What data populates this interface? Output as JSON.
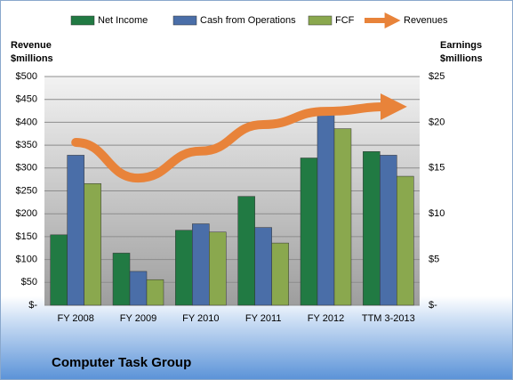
{
  "chart_data": {
    "type": "bar",
    "title": "Computer Task Group",
    "ylabel": [
      "Revenue",
      "$millions"
    ],
    "y2label": [
      "Earnings",
      "$millions"
    ],
    "categories": [
      "FY 2008",
      "FY 2009",
      "FY 2010",
      "FY 2011",
      "FY 2012",
      "TTM 3-2013"
    ],
    "series": [
      {
        "name": "Net Income",
        "color": "#217a43",
        "axis": "y2",
        "values": [
          7.7,
          5.7,
          8.2,
          11.9,
          16.1,
          16.8
        ]
      },
      {
        "name": "Cash from Operations",
        "color": "#4a6ea8",
        "axis": "y2",
        "values": [
          16.4,
          3.7,
          8.9,
          8.5,
          21.1,
          16.4
        ]
      },
      {
        "name": "FCF",
        "color": "#8aa84e",
        "axis": "y2",
        "values": [
          13.3,
          2.8,
          8.0,
          6.8,
          19.3,
          14.1
        ]
      },
      {
        "name": "Revenues",
        "color": "#e8833a",
        "type": "line",
        "values": [
          356,
          278,
          337,
          395,
          424,
          434
        ]
      }
    ],
    "ylim": [
      0,
      500
    ],
    "yticks": [
      {
        "value": 0,
        "label": "$-"
      },
      {
        "value": 50,
        "label": "$50"
      },
      {
        "value": 100,
        "label": "$100"
      },
      {
        "value": 150,
        "label": "$150"
      },
      {
        "value": 200,
        "label": "$200"
      },
      {
        "value": 250,
        "label": "$250"
      },
      {
        "value": 300,
        "label": "$300"
      },
      {
        "value": 350,
        "label": "$350"
      },
      {
        "value": 400,
        "label": "$400"
      },
      {
        "value": 450,
        "label": "$450"
      },
      {
        "value": 500,
        "label": "$500"
      }
    ],
    "y2lim": [
      0,
      25
    ],
    "y2ticks": [
      {
        "value": 0,
        "label": "$-"
      },
      {
        "value": 5,
        "label": "$5"
      },
      {
        "value": 10,
        "label": "$10"
      },
      {
        "value": 15,
        "label": "$15"
      },
      {
        "value": 20,
        "label": "$20"
      },
      {
        "value": 25,
        "label": "$25"
      }
    ],
    "grid": true
  }
}
